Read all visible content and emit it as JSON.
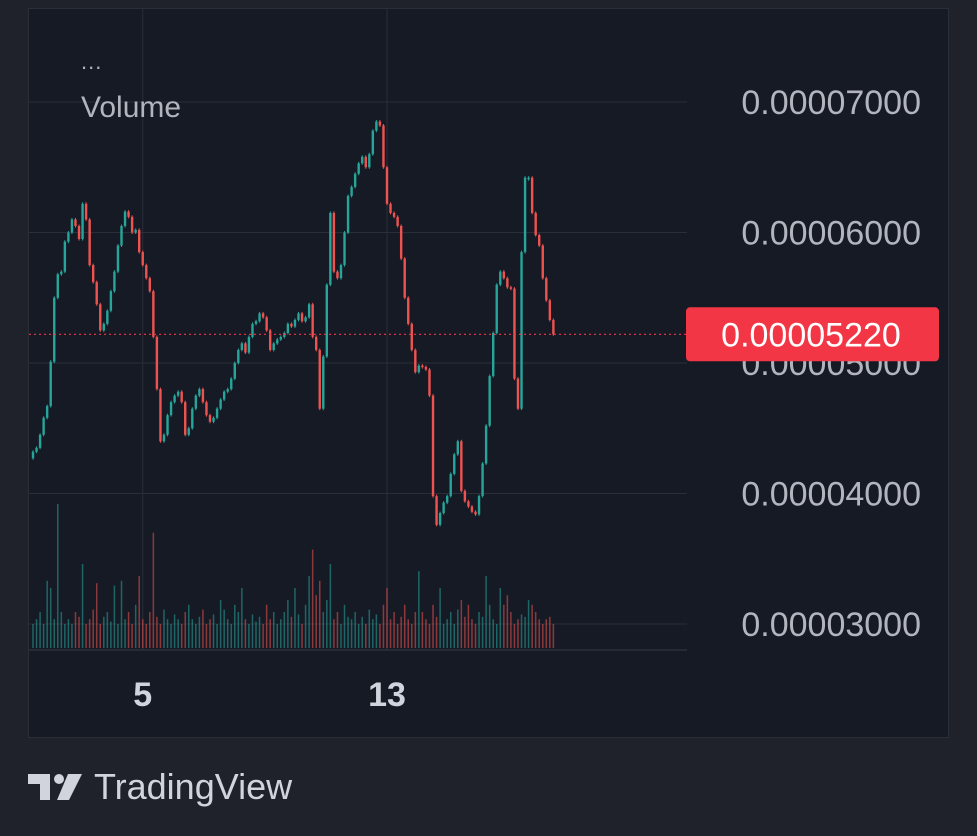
{
  "legend": {
    "menu": "...",
    "volume_label": "Volume"
  },
  "branding": {
    "name": "TradingView",
    "logo_icon": "tradingview-logo-icon"
  },
  "colors": {
    "background": "#1f222b",
    "panel": "#161a25",
    "grid": "#2a2e39",
    "up": "#26a69a",
    "down": "#ef5350",
    "price_label_bg": "#f23645",
    "axis_text": "#b2b5be",
    "time_text": "#d1d4dc"
  },
  "chart_data": {
    "type": "candlestick",
    "price_axis": {
      "ticks": [
        {
          "value": 7e-05,
          "label": "0.00007000"
        },
        {
          "value": 6e-05,
          "label": "0.00006000"
        },
        {
          "value": 5e-05,
          "label": "0.00005000"
        },
        {
          "value": 4e-05,
          "label": "0.00004000"
        },
        {
          "value": 3e-05,
          "label": "0.00003000"
        }
      ]
    },
    "time_axis": {
      "ticks": [
        {
          "index": 31,
          "label": "5"
        },
        {
          "index": 100,
          "label": "13"
        }
      ]
    },
    "last_price": {
      "value": 5.22e-05,
      "label": "0.00005220"
    },
    "close": [
      4.32e-05,
      4.35e-05,
      4.45e-05,
      4.58e-05,
      4.67e-05,
      5.01e-05,
      5.5e-05,
      5.68e-05,
      5.7e-05,
      5.93e-05,
      6e-05,
      6.1e-05,
      6.05e-05,
      5.95e-05,
      6.22e-05,
      6.1e-05,
      5.75e-05,
      5.62e-05,
      5.45e-05,
      5.25e-05,
      5.3e-05,
      5.4e-05,
      5.55e-05,
      5.7e-05,
      5.9e-05,
      6.05e-05,
      6.16e-05,
      6.12e-05,
      6e-05,
      6.02e-05,
      5.85e-05,
      5.75e-05,
      5.65e-05,
      5.55e-05,
      5.2e-05,
      4.8e-05,
      4.4e-05,
      4.45e-05,
      4.6e-05,
      4.7e-05,
      4.75e-05,
      4.78e-05,
      4.7e-05,
      4.45e-05,
      4.5e-05,
      4.65e-05,
      4.75e-05,
      4.8e-05,
      4.7e-05,
      4.6e-05,
      4.55e-05,
      4.58e-05,
      4.65e-05,
      4.72e-05,
      4.78e-05,
      4.8e-05,
      4.88e-05,
      5e-05,
      5.1e-05,
      5.15e-05,
      5.08e-05,
      5.2e-05,
      5.3e-05,
      5.32e-05,
      5.38e-05,
      5.35e-05,
      5.25e-05,
      5.1e-05,
      5.15e-05,
      5.18e-05,
      5.2e-05,
      5.23e-05,
      5.3e-05,
      5.28e-05,
      5.33e-05,
      5.38e-05,
      5.32e-05,
      5.35e-05,
      5.45e-05,
      5.2e-05,
      5.1e-05,
      4.65e-05,
      5.05e-05,
      5.6e-05,
      6.15e-05,
      5.7e-05,
      5.65e-05,
      5.75e-05,
      6e-05,
      6.28e-05,
      6.35e-05,
      6.45e-05,
      6.53e-05,
      6.58e-05,
      6.5e-05,
      6.6e-05,
      6.78e-05,
      6.85e-05,
      6.82e-05,
      6.5e-05,
      6.22e-05,
      6.15e-05,
      6.12e-05,
      6.05e-05,
      5.8e-05,
      5.5e-05,
      5.3e-05,
      5.1e-05,
      4.93e-05,
      4.98e-05,
      4.97e-05,
      4.95e-05,
      4.75e-05,
      3.98e-05,
      3.76e-05,
      3.85e-05,
      3.93e-05,
      3.98e-05,
      4.15e-05,
      4.3e-05,
      4.4e-05,
      4.02e-05,
      3.94e-05,
      3.9e-05,
      3.86e-05,
      3.84e-05,
      3.98e-05,
      4.23e-05,
      4.52e-05,
      4.9e-05,
      5.23e-05,
      5.6e-05,
      5.7e-05,
      5.65e-05,
      5.58e-05,
      5.57e-05,
      4.88e-05,
      4.65e-05,
      5.85e-05,
      6.42e-05,
      6.42e-05,
      6.15e-05,
      5.98e-05,
      5.9e-05,
      5.65e-05,
      5.48e-05,
      5.33e-05,
      5.22e-05
    ],
    "volume": [
      1.0,
      1.2,
      1.5,
      1.0,
      2.8,
      2.5,
      1.2,
      6.0,
      1.5,
      1.0,
      1.2,
      1.0,
      1.5,
      1.3,
      3.5,
      1.0,
      1.2,
      1.6,
      2.7,
      1.0,
      1.3,
      1.5,
      1.1,
      2.6,
      1.0,
      2.8,
      1.2,
      1.5,
      1.0,
      1.8,
      3.0,
      1.2,
      1.0,
      1.5,
      4.8,
      1.3,
      1.0,
      1.6,
      1.2,
      1.0,
      1.4,
      1.2,
      1.0,
      1.5,
      1.8,
      1.2,
      1.0,
      1.3,
      1.6,
      1.0,
      1.2,
      1.4,
      1.0,
      2.0,
      1.6,
      1.2,
      1.0,
      1.8,
      1.5,
      2.5,
      1.2,
      1.0,
      1.4,
      1.1,
      1.3,
      1.0,
      1.8,
      1.2,
      1.5,
      1.0,
      1.2,
      1.5,
      2.0,
      1.3,
      2.5,
      1.4,
      1.0,
      1.8,
      3.0,
      4.1,
      2.2,
      2.8,
      1.5,
      2.0,
      3.5,
      1.2,
      1.5,
      1.0,
      1.8,
      1.3,
      1.2,
      1.5,
      1.0,
      1.3,
      1.0,
      1.6,
      1.2,
      1.4,
      1.0,
      1.8,
      2.5,
      1.2,
      1.5,
      1.0,
      1.3,
      1.8,
      1.2,
      1.0,
      1.5,
      3.2,
      1.5,
      1.2,
      1.0,
      1.8,
      1.3,
      2.5,
      1.0,
      1.2,
      1.5,
      1.0,
      1.6,
      2.0,
      1.3,
      1.8,
      1.2,
      1.0,
      1.5,
      1.3,
      3.0,
      1.8,
      1.2,
      1.0,
      2.5,
      1.8,
      2.2,
      1.5,
      1.0,
      1.2,
      1.4,
      1.3,
      2.0,
      1.8,
      1.5,
      1.2,
      1.0,
      1.2,
      1.3,
      1.0
    ]
  }
}
